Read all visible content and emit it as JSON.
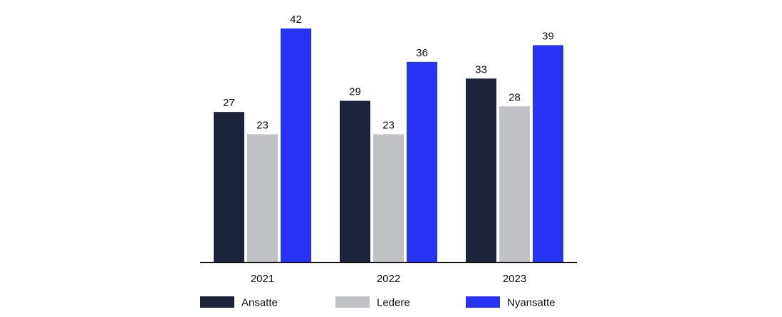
{
  "chart_data": {
    "type": "bar",
    "title": "",
    "xlabel": "",
    "ylabel": "",
    "categories": [
      "2021",
      "2022",
      "2023"
    ],
    "series": [
      {
        "name": "Ansatte",
        "color": "#1c233b",
        "values": [
          27,
          29,
          33
        ]
      },
      {
        "name": "Ledere",
        "color": "#c0c2c5",
        "values": [
          23,
          23,
          28
        ]
      },
      {
        "name": "Nyansatte",
        "color": "#2633f5",
        "values": [
          42,
          36,
          39
        ]
      }
    ],
    "ylim": [
      0,
      42
    ],
    "grid": false,
    "legend_position": "bottom"
  }
}
